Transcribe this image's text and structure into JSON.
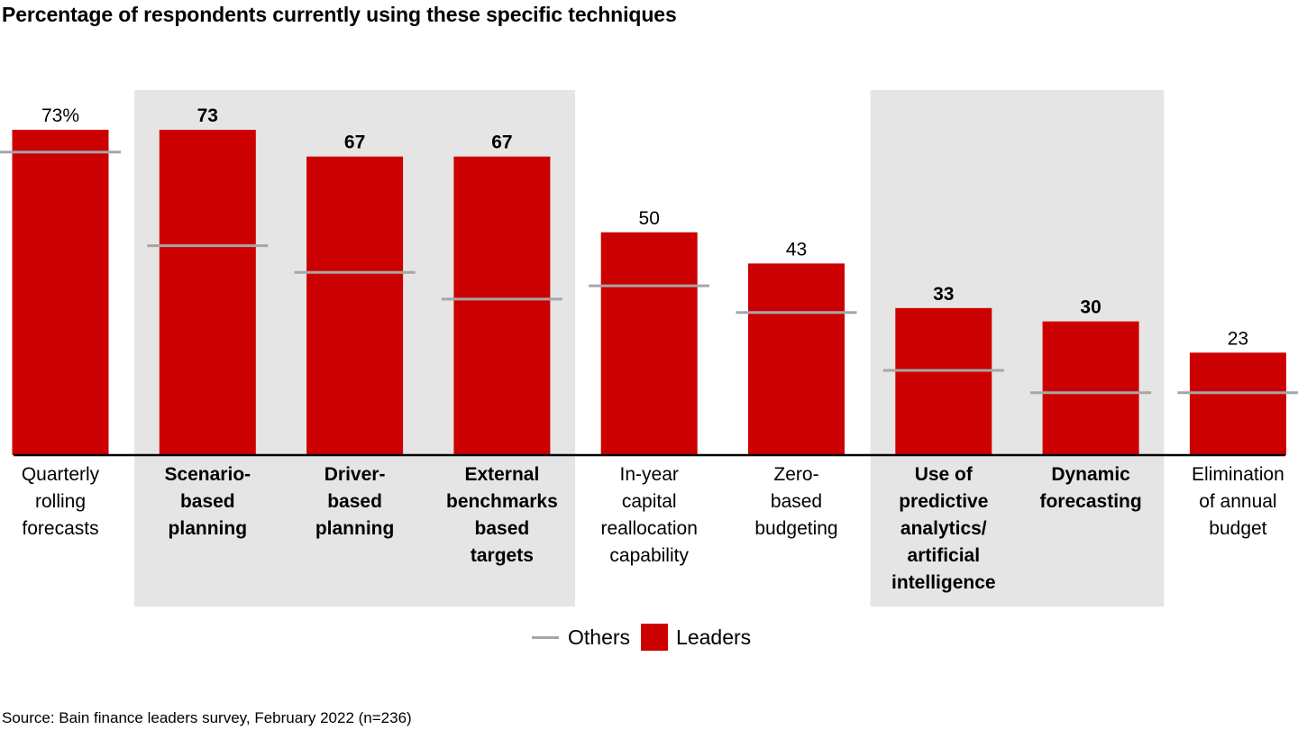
{
  "chart_data": {
    "type": "bar",
    "title": "Percentage of respondents currently using these specific techniques",
    "xlabel": "",
    "ylabel": "",
    "ylim": [
      0,
      100
    ],
    "grid": false,
    "value_suffix_first": "%",
    "categories": [
      "Quarterly rolling forecasts",
      "Scenario-based planning",
      "Driver-based planning",
      "External benchmarks based targets",
      "In-year capital reallocation capability",
      "Zero-based budgeting",
      "Use of predictive analytics/ artificial intelligence",
      "Dynamic forecasting",
      "Elimination of annual budget"
    ],
    "category_lines": [
      [
        "Quarterly",
        "rolling",
        "forecasts"
      ],
      [
        "Scenario-",
        "based",
        "planning"
      ],
      [
        "Driver-",
        "based",
        "planning"
      ],
      [
        "External",
        "benchmarks",
        "based",
        "targets"
      ],
      [
        "In-year",
        "capital",
        "reallocation",
        "capability"
      ],
      [
        "Zero-",
        "based",
        "budgeting"
      ],
      [
        "Use of",
        "predictive",
        "analytics/",
        "artificial",
        "intelligence"
      ],
      [
        "Dynamic",
        "forecasting"
      ],
      [
        "Elimination",
        "of annual",
        "budget"
      ]
    ],
    "highlighted": [
      false,
      true,
      true,
      true,
      false,
      false,
      true,
      true,
      false
    ],
    "highlight_groups": [
      [
        1,
        3
      ],
      [
        6,
        7
      ]
    ],
    "data_labels": [
      "73%",
      "73",
      "67",
      "67",
      "50",
      "43",
      "33",
      "30",
      "23"
    ],
    "series": [
      {
        "name": "Leaders",
        "type": "bar",
        "color": "#cc0000",
        "values": [
          73,
          73,
          67,
          67,
          50,
          43,
          33,
          30,
          23
        ]
      },
      {
        "name": "Others",
        "type": "marker-line",
        "color": "#a6a6a6",
        "values": [
          68,
          47,
          41,
          35,
          38,
          32,
          19,
          14,
          14
        ]
      }
    ],
    "legend": {
      "position": "bottom-center",
      "items": [
        "Others",
        "Leaders"
      ]
    }
  },
  "source": "Source: Bain finance leaders survey, February 2022 (n=236)",
  "colors": {
    "leaders": "#cc0000",
    "others": "#a6a6a6",
    "highlight_panel": "#e5e5e5",
    "axis": "#000000"
  }
}
